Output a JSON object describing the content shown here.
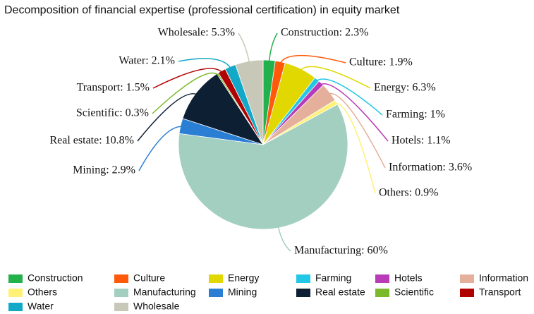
{
  "chart_data": {
    "type": "pie",
    "title": "Decomposition of financial expertise (professional certification) in equity market",
    "categories": [
      "Construction",
      "Culture",
      "Energy",
      "Farming",
      "Hotels",
      "Information",
      "Others",
      "Manufacturing",
      "Mining",
      "Real estate",
      "Scientific",
      "Transport",
      "Water",
      "Wholesale"
    ],
    "values": [
      2.3,
      1.9,
      6.3,
      1,
      1.1,
      3.6,
      0.9,
      60,
      2.9,
      10.8,
      0.3,
      1.5,
      2.1,
      5.3
    ],
    "value_labels": [
      "Construction: 2.3%",
      "Culture: 1.9%",
      "Energy: 6.3%",
      "Farming: 1%",
      "Hotels: 1.1%",
      "Information: 3.6%",
      "Others: 0.9%",
      "Manufacturing: 60%",
      "Mining: 2.9%",
      "Real estate: 10.8%",
      "Scientific: 0.3%",
      "Transport: 1.5%",
      "Water: 2.1%",
      "Wholesale: 5.3%"
    ],
    "colors": [
      "#22b14c",
      "#ff5a0a",
      "#e0d800",
      "#22c7e6",
      "#b83cb8",
      "#e4b09c",
      "#fff176",
      "#a3cfc0",
      "#2a7fd4",
      "#0d1f33",
      "#7ab92a",
      "#b00000",
      "#14a8c8",
      "#c8c8b8"
    ],
    "legend": "bottom"
  }
}
